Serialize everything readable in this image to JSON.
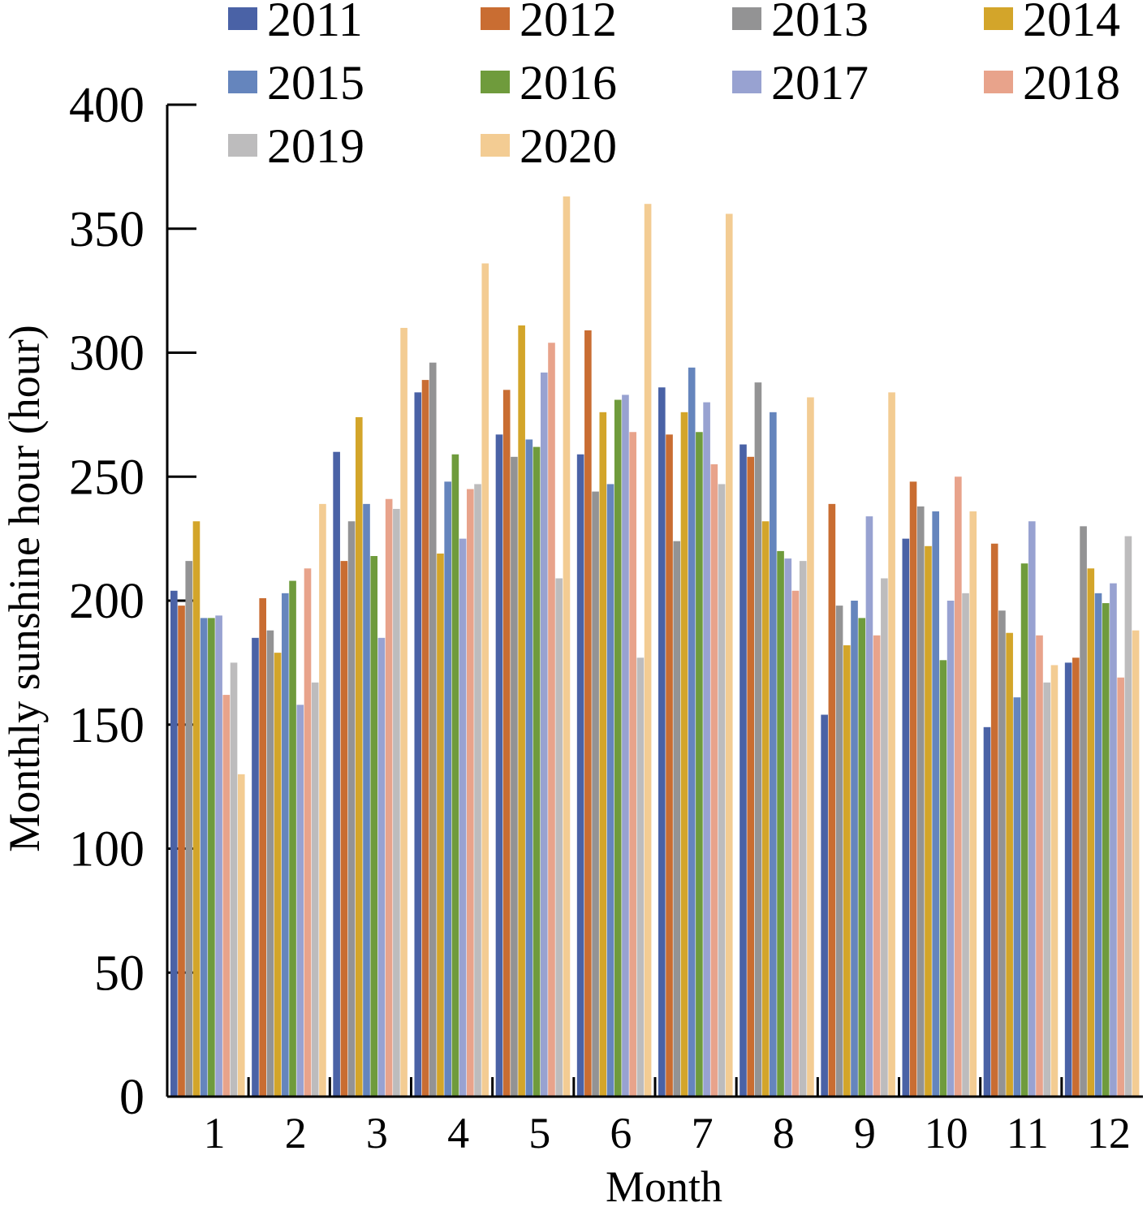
{
  "chart_data": {
    "type": "bar",
    "xlabel": "Month",
    "ylabel": "Monthly sunshine hour (hour)",
    "ylim": [
      0,
      400
    ],
    "yticks": [
      0,
      50,
      100,
      150,
      200,
      250,
      300,
      350,
      400
    ],
    "categories": [
      "1",
      "2",
      "3",
      "4",
      "5",
      "6",
      "7",
      "8",
      "9",
      "10",
      "11",
      "12"
    ],
    "legend_position": "top",
    "grid": false,
    "series": [
      {
        "name": "2011",
        "color": "#4a62a6",
        "values": [
          204,
          185,
          260,
          284,
          267,
          259,
          286,
          263,
          154,
          225,
          149,
          175
        ]
      },
      {
        "name": "2012",
        "color": "#c96d32",
        "values": [
          198,
          201,
          216,
          289,
          285,
          309,
          267,
          258,
          239,
          248,
          223,
          177
        ]
      },
      {
        "name": "2013",
        "color": "#939394",
        "values": [
          216,
          188,
          232,
          296,
          258,
          244,
          224,
          288,
          198,
          238,
          196,
          230
        ]
      },
      {
        "name": "2014",
        "color": "#d3a52a",
        "values": [
          232,
          179,
          274,
          219,
          311,
          276,
          276,
          232,
          182,
          222,
          187,
          213
        ]
      },
      {
        "name": "2015",
        "color": "#6585bd",
        "values": [
          193,
          203,
          239,
          248,
          265,
          247,
          294,
          276,
          200,
          236,
          161,
          203
        ]
      },
      {
        "name": "2016",
        "color": "#6f9b3c",
        "values": [
          193,
          208,
          218,
          259,
          262,
          281,
          268,
          220,
          193,
          176,
          215,
          199
        ]
      },
      {
        "name": "2017",
        "color": "#98a2d1",
        "values": [
          194,
          158,
          185,
          225,
          292,
          283,
          280,
          217,
          234,
          200,
          232,
          207
        ]
      },
      {
        "name": "2018",
        "color": "#e8a38b",
        "values": [
          162,
          213,
          241,
          245,
          304,
          268,
          255,
          204,
          186,
          250,
          186,
          169
        ]
      },
      {
        "name": "2019",
        "color": "#bdbcbd",
        "values": [
          175,
          167,
          237,
          247,
          209,
          177,
          247,
          216,
          209,
          203,
          167,
          226
        ]
      },
      {
        "name": "2020",
        "color": "#f3cc93",
        "values": [
          130,
          239,
          310,
          336,
          363,
          360,
          356,
          282,
          284,
          236,
          174,
          188
        ]
      }
    ]
  }
}
